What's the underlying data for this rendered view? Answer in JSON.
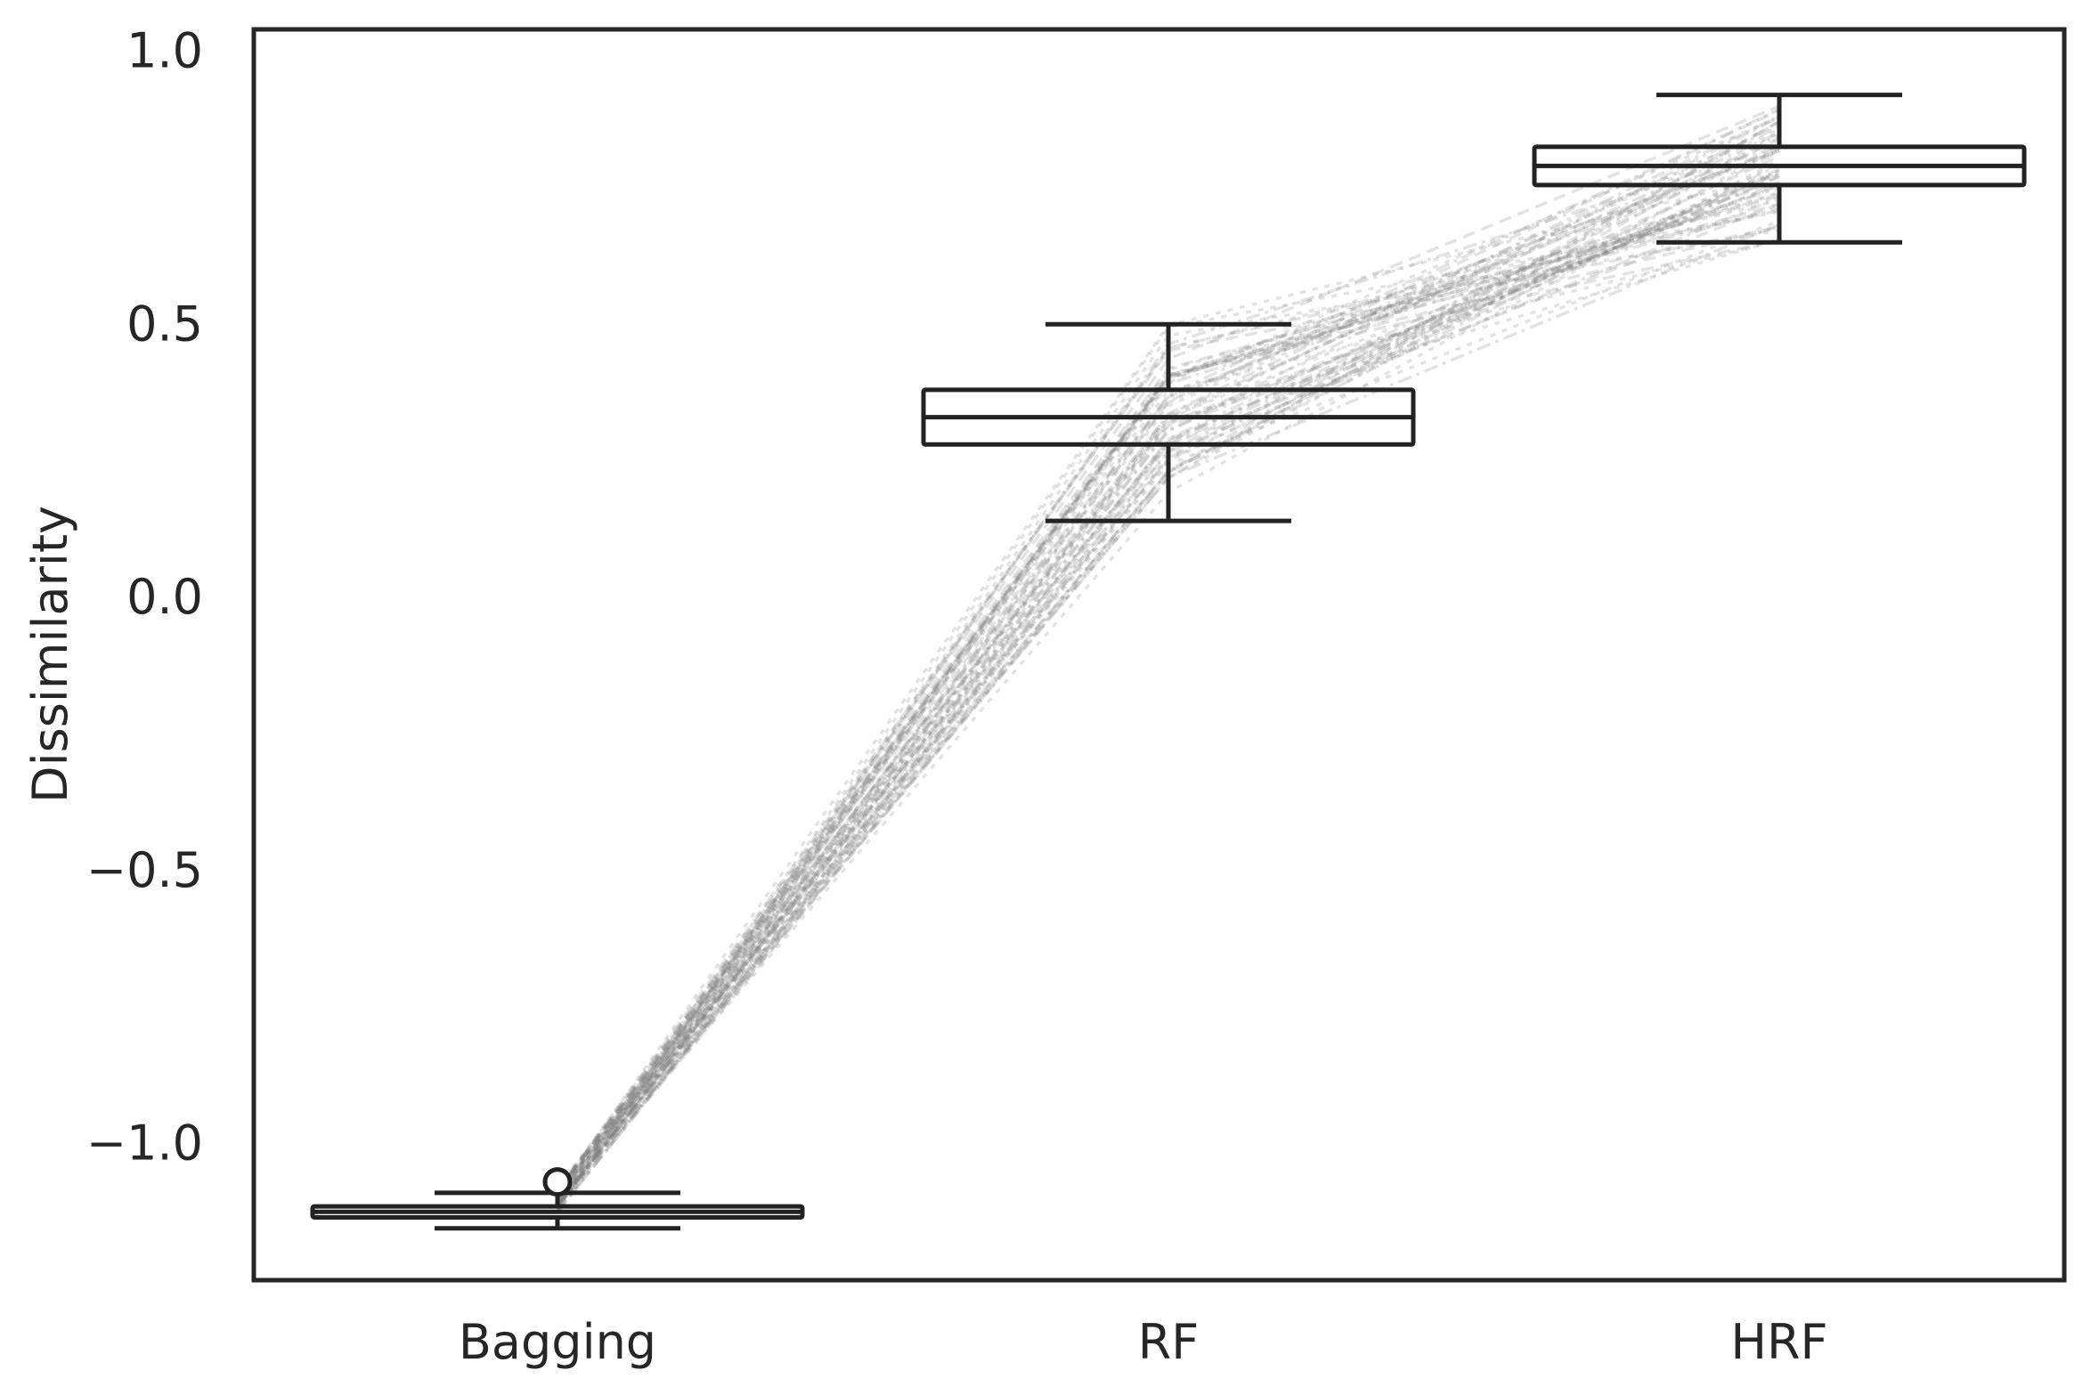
{
  "chart_data": {
    "type": "box",
    "title": "",
    "xlabel": "",
    "ylabel": "Dissimilarity",
    "categories": [
      "Bagging",
      "RF",
      "HRF"
    ],
    "ylim": [
      -1.25,
      1.04
    ],
    "yticks": [
      {
        "value": 1.0,
        "label": "1.0"
      },
      {
        "value": 0.5,
        "label": "0.5"
      },
      {
        "value": 0.0,
        "label": "0.0"
      },
      {
        "value": -0.5,
        "label": "−0.5"
      },
      {
        "value": -1.0,
        "label": "−1.0"
      }
    ],
    "grid": false,
    "boxes": [
      {
        "category": "Bagging",
        "whisker_low": -1.155,
        "q1": -1.135,
        "median": -1.125,
        "q3": -1.115,
        "whisker_high": -1.09,
        "outliers": [
          -1.07
        ]
      },
      {
        "category": "RF",
        "whisker_low": 0.14,
        "q1": 0.28,
        "median": 0.33,
        "q3": 0.38,
        "whisker_high": 0.5,
        "outliers": []
      },
      {
        "category": "HRF",
        "whisker_low": 0.65,
        "q1": 0.755,
        "median": 0.79,
        "q3": 0.825,
        "whisker_high": 0.92,
        "outliers": []
      }
    ],
    "paired_lines": {
      "count": 60,
      "color": "#808080",
      "opacity": 0.22,
      "style": "dashed"
    },
    "colors": {
      "box_edge": "#222222",
      "frame": "#262626",
      "text": "#262626"
    }
  }
}
